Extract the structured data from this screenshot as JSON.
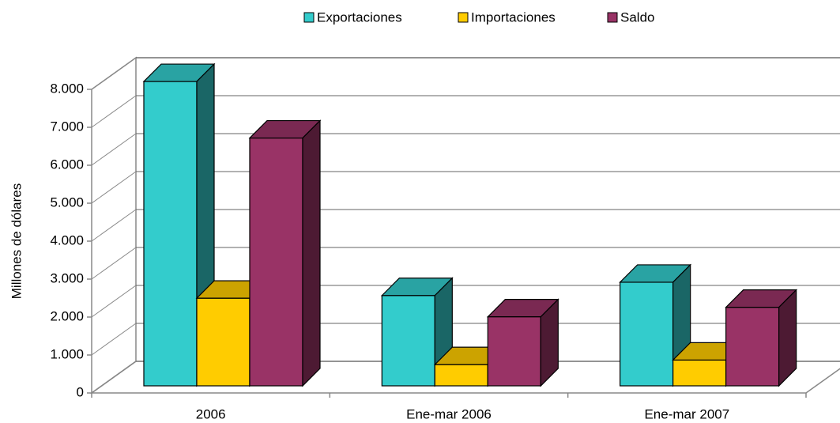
{
  "chart_data": {
    "type": "bar3d",
    "ylabel": "Millones de dólares",
    "categories": [
      "2006",
      "Ene-mar 2006",
      "Ene-mar 2007"
    ],
    "series": [
      {
        "name": "Exportaciones",
        "color": "#33cccc",
        "values": [
          8020,
          2380,
          2730
        ]
      },
      {
        "name": "Importaciones",
        "color": "#ffcc00",
        "values": [
          2310,
          560,
          680
        ]
      },
      {
        "name": "Saldo",
        "color": "#993366",
        "values": [
          6530,
          1820,
          2070
        ]
      }
    ],
    "ylim": [
      0,
      8000
    ],
    "yticks": [
      0,
      {
        "value": 1000,
        "label": "1.000"
      },
      {
        "value": 2000,
        "label": "2.000"
      },
      {
        "value": 3000,
        "label": "3.000"
      },
      {
        "value": 4000,
        "label": "4.000"
      },
      {
        "value": 5000,
        "label": "5.000"
      },
      {
        "value": 6000,
        "label": "6.000"
      },
      {
        "value": 7000,
        "label": "7.000"
      },
      {
        "value": 8000,
        "label": "8.000"
      }
    ],
    "grid": true,
    "legend": "top"
  }
}
